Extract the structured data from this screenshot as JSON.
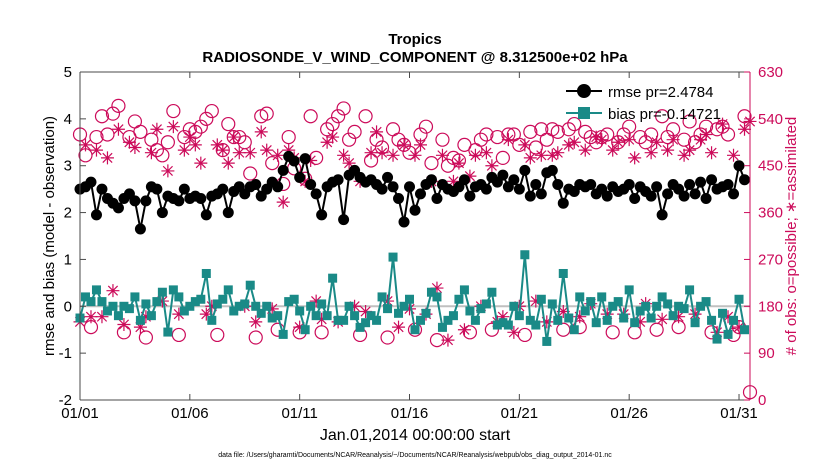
{
  "chart_data": {
    "type": "line",
    "title": "Tropics",
    "subtitle": "RADIOSONDE_V_WIND_COMPONENT @ 8.312500e+02 hPa",
    "xlabel": "Jan.01,2014 00:00:00 start",
    "ylabel": "rmse and bias (model - observation)",
    "y2label": "# of obs: o=possible; ∗=assimilated",
    "footer": "data file: /Users/gharamti/Documents/NCAR/Reanalysis/~/Documents/NCAR/Reanalysis/webpub/obs_diag_output_2014-01.nc",
    "xlim": [
      1,
      31.5
    ],
    "ylim": [
      -2,
      5
    ],
    "y2lim": [
      0,
      630
    ],
    "xticks": [
      1,
      6,
      11,
      16,
      21,
      26,
      31
    ],
    "xticklabels": [
      "01/01",
      "01/06",
      "01/11",
      "01/16",
      "01/21",
      "01/26",
      "01/31"
    ],
    "yticks": [
      -2,
      -1,
      0,
      1,
      2,
      3,
      4,
      5
    ],
    "y2ticks": [
      0,
      90,
      180,
      270,
      360,
      450,
      540,
      630
    ],
    "legend_position": "top-right",
    "colors": {
      "rmse": "#000000",
      "bias": "#1a8a87",
      "counts": "#cc0b5a",
      "zero_line": "#c0c0c0",
      "axes": "#4a4a4a"
    },
    "series": [
      {
        "name": "rmse",
        "legend": "rmse pr=2.4784",
        "marker": "circle",
        "x": [
          1.0,
          1.25,
          1.5,
          1.75,
          2.0,
          2.25,
          2.5,
          2.75,
          3.0,
          3.25,
          3.5,
          3.75,
          4.0,
          4.25,
          4.5,
          4.75,
          5.0,
          5.25,
          5.5,
          5.75,
          6.0,
          6.25,
          6.5,
          6.75,
          7.0,
          7.25,
          7.5,
          7.75,
          8.0,
          8.25,
          8.5,
          8.75,
          9.0,
          9.25,
          9.5,
          9.75,
          10.0,
          10.25,
          10.5,
          10.75,
          11.0,
          11.25,
          11.5,
          11.75,
          12.0,
          12.25,
          12.5,
          12.75,
          13.0,
          13.25,
          13.5,
          13.75,
          14.0,
          14.25,
          14.5,
          14.75,
          15.0,
          15.25,
          15.5,
          15.75,
          16.0,
          16.25,
          16.5,
          16.75,
          17.0,
          17.25,
          17.5,
          17.75,
          18.0,
          18.25,
          18.5,
          18.75,
          19.0,
          19.25,
          19.5,
          19.75,
          20.0,
          20.25,
          20.5,
          20.75,
          21.0,
          21.25,
          21.5,
          21.75,
          22.0,
          22.25,
          22.5,
          22.75,
          23.0,
          23.25,
          23.5,
          23.75,
          24.0,
          24.25,
          24.5,
          24.75,
          25.0,
          25.25,
          25.5,
          25.75,
          26.0,
          26.25,
          26.5,
          26.75,
          27.0,
          27.25,
          27.5,
          27.75,
          28.0,
          28.25,
          28.5,
          28.75,
          29.0,
          29.25,
          29.5,
          29.75,
          30.0,
          30.25,
          30.5,
          30.75,
          31.0,
          31.25
        ],
        "values": [
          2.5,
          2.55,
          2.65,
          1.95,
          2.5,
          2.3,
          2.2,
          2.1,
          2.3,
          2.4,
          2.25,
          1.65,
          2.25,
          2.55,
          2.5,
          2.0,
          2.35,
          2.3,
          2.25,
          2.5,
          2.3,
          2.35,
          2.3,
          1.95,
          2.35,
          2.4,
          2.5,
          2.0,
          2.45,
          2.55,
          2.4,
          2.55,
          2.6,
          2.35,
          2.5,
          2.65,
          2.55,
          2.9,
          3.2,
          3.1,
          2.75,
          3.15,
          2.6,
          2.4,
          1.95,
          2.55,
          2.65,
          2.7,
          1.85,
          2.8,
          2.9,
          2.75,
          2.65,
          2.7,
          2.6,
          2.5,
          2.75,
          2.55,
          2.3,
          1.8,
          2.55,
          2.05,
          2.4,
          2.6,
          2.7,
          2.3,
          2.6,
          2.5,
          2.45,
          2.55,
          2.7,
          2.35,
          2.55,
          2.6,
          2.5,
          2.75,
          2.65,
          2.8,
          2.55,
          2.7,
          2.5,
          2.9,
          2.35,
          2.6,
          2.4,
          2.85,
          2.9,
          2.6,
          2.2,
          2.5,
          2.45,
          2.6,
          2.55,
          2.6,
          2.4,
          2.5,
          2.35,
          2.55,
          2.45,
          2.5,
          2.6,
          2.3,
          2.55,
          2.45,
          2.35,
          2.55,
          1.95,
          2.4,
          2.6,
          2.5,
          2.35,
          2.6,
          2.4,
          2.65,
          2.3,
          2.7,
          2.5,
          2.55,
          2.6,
          2.4,
          3.0,
          2.7
        ]
      },
      {
        "name": "bias",
        "legend": "bias pr=-0.14721",
        "marker": "square",
        "x": [
          1.0,
          1.25,
          1.5,
          1.75,
          2.0,
          2.25,
          2.5,
          2.75,
          3.0,
          3.25,
          3.5,
          3.75,
          4.0,
          4.25,
          4.5,
          4.75,
          5.0,
          5.25,
          5.5,
          5.75,
          6.0,
          6.25,
          6.5,
          6.75,
          7.0,
          7.25,
          7.5,
          7.75,
          8.0,
          8.25,
          8.5,
          8.75,
          9.0,
          9.25,
          9.5,
          9.75,
          10.0,
          10.25,
          10.5,
          10.75,
          11.0,
          11.25,
          11.5,
          11.75,
          12.0,
          12.25,
          12.5,
          12.75,
          13.0,
          13.25,
          13.5,
          13.75,
          14.0,
          14.25,
          14.5,
          14.75,
          15.0,
          15.25,
          15.5,
          15.75,
          16.0,
          16.25,
          16.5,
          16.75,
          17.0,
          17.25,
          17.5,
          17.75,
          18.0,
          18.25,
          18.5,
          18.75,
          19.0,
          19.25,
          19.5,
          19.75,
          20.0,
          20.25,
          20.5,
          20.75,
          21.0,
          21.25,
          21.5,
          21.75,
          22.0,
          22.25,
          22.5,
          22.75,
          23.0,
          23.25,
          23.5,
          23.75,
          24.0,
          24.25,
          24.5,
          24.75,
          25.0,
          25.25,
          25.5,
          25.75,
          26.0,
          26.25,
          26.5,
          26.75,
          27.0,
          27.25,
          27.5,
          27.75,
          28.0,
          28.25,
          28.5,
          28.75,
          29.0,
          29.25,
          29.5,
          29.75,
          30.0,
          30.25,
          30.5,
          30.75,
          31.0,
          31.25
        ],
        "values": [
          -0.25,
          0.2,
          0.1,
          0.35,
          0.1,
          -0.1,
          0.0,
          -0.2,
          0.0,
          -0.05,
          0.2,
          -0.3,
          0.05,
          -0.2,
          0.1,
          0.3,
          -0.55,
          0.35,
          0.2,
          -0.1,
          0.0,
          0.1,
          0.15,
          0.7,
          -0.3,
          0.05,
          0.15,
          0.35,
          -0.1,
          0.0,
          0.05,
          0.45,
          0.0,
          -0.15,
          0.0,
          -0.25,
          -0.2,
          -0.6,
          0.1,
          0.15,
          -0.1,
          -0.5,
          0.0,
          -0.2,
          0.05,
          -0.2,
          0.6,
          -0.3,
          -0.3,
          0.0,
          -0.2,
          -0.45,
          -0.35,
          -0.2,
          -0.3,
          0.2,
          -0.05,
          1.05,
          -0.15,
          0.0,
          0.15,
          -0.5,
          -0.3,
          -0.15,
          0.3,
          0.2,
          -0.45,
          -0.3,
          -0.2,
          0.15,
          0.35,
          -0.1,
          -0.3,
          -0.05,
          0.05,
          0.3,
          -0.4,
          -0.35,
          -0.4,
          0.0,
          -0.2,
          1.1,
          -0.3,
          -0.4,
          0.15,
          -0.75,
          0.05,
          -0.3,
          0.7,
          -0.25,
          -0.5,
          0.2,
          -0.1,
          0.1,
          -0.35,
          0.2,
          -0.3,
          0.0,
          0.1,
          -0.25,
          0.35,
          -0.35,
          -0.1,
          0.0,
          -0.25,
          0.0,
          0.2,
          0.05,
          -0.2,
          0.0,
          -0.05,
          0.35,
          -0.35,
          0.0,
          0.1,
          -0.3,
          -0.7,
          -0.15,
          -0.6,
          -0.3,
          0.15,
          -0.5
        ]
      },
      {
        "name": "possible",
        "marker": "open-circle",
        "axis": "right",
        "x": [
          1.0,
          1.25,
          1.5,
          1.75,
          2.0,
          2.25,
          2.5,
          2.75,
          3.0,
          3.25,
          3.5,
          3.75,
          4.0,
          4.25,
          4.5,
          4.75,
          5.0,
          5.25,
          5.5,
          5.75,
          6.0,
          6.25,
          6.5,
          6.75,
          7.0,
          7.25,
          7.5,
          7.75,
          8.0,
          8.25,
          8.5,
          8.75,
          9.0,
          9.25,
          9.5,
          9.75,
          10.0,
          10.25,
          10.5,
          10.75,
          11.0,
          11.25,
          11.5,
          11.75,
          12.0,
          12.25,
          12.5,
          12.75,
          13.0,
          13.25,
          13.5,
          13.75,
          14.0,
          14.25,
          14.5,
          14.75,
          15.0,
          15.25,
          15.5,
          15.75,
          16.0,
          16.25,
          16.5,
          16.75,
          17.0,
          17.25,
          17.5,
          17.75,
          18.0,
          18.25,
          18.5,
          18.75,
          19.0,
          19.25,
          19.5,
          19.75,
          20.0,
          20.25,
          20.5,
          20.75,
          21.0,
          21.25,
          21.5,
          21.75,
          22.0,
          22.25,
          22.5,
          22.75,
          23.0,
          23.25,
          23.5,
          23.75,
          24.0,
          24.25,
          24.5,
          24.75,
          25.0,
          25.25,
          25.5,
          25.75,
          26.0,
          26.25,
          26.5,
          26.75,
          27.0,
          27.25,
          27.5,
          27.75,
          28.0,
          28.25,
          28.5,
          28.75,
          29.0,
          29.25,
          29.5,
          29.75,
          30.0,
          30.25,
          30.5,
          30.75,
          31.0,
          31.25,
          31.5
        ],
        "values": [
          510,
          470,
          140,
          505,
          545,
          510,
          550,
          565,
          130,
          505,
          535,
          515,
          120,
          500,
          480,
          470,
          495,
          555,
          125,
          505,
          520,
          515,
          525,
          540,
          555,
          125,
          480,
          530,
          505,
          505,
          495,
          435,
          120,
          545,
          550,
          455,
          135,
          415,
          505,
          445,
          130,
          425,
          545,
          465,
          130,
          520,
          530,
          545,
          560,
          500,
          515,
          125,
          545,
          460,
          500,
          485,
          120,
          520,
          500,
          490,
          475,
          135,
          510,
          525,
          455,
          115,
          500,
          450,
          465,
          460,
          490,
          130,
          480,
          500,
          510,
          135,
          505,
          465,
          510,
          510,
          490,
          125,
          515,
          485,
          520,
          500,
          520,
          515,
          135,
          520,
          530,
          140,
          515,
          505,
          495,
          505,
          510,
          130,
          495,
          510,
          525,
          130,
          505,
          495,
          510,
          135,
          545,
          505,
          520,
          140,
          500,
          535,
          495,
          510,
          525,
          130,
          520,
          525,
          510,
          125,
          140,
          545,
          15
        ]
      },
      {
        "name": "assimilated",
        "marker": "asterisk",
        "axis": "right",
        "x": [
          1.0,
          1.25,
          1.5,
          1.75,
          2.0,
          2.25,
          2.5,
          2.75,
          3.0,
          3.25,
          3.5,
          3.75,
          4.0,
          4.25,
          4.5,
          4.75,
          5.0,
          5.25,
          5.5,
          5.75,
          6.0,
          6.25,
          6.5,
          6.75,
          7.0,
          7.25,
          7.5,
          7.75,
          8.0,
          8.25,
          8.5,
          8.75,
          9.0,
          9.25,
          9.5,
          9.75,
          10.0,
          10.25,
          10.5,
          10.75,
          11.0,
          11.25,
          11.5,
          11.75,
          12.0,
          12.25,
          12.5,
          12.75,
          13.0,
          13.25,
          13.5,
          13.75,
          14.0,
          14.25,
          14.5,
          14.75,
          15.0,
          15.25,
          15.5,
          15.75,
          16.0,
          16.25,
          16.5,
          16.75,
          17.0,
          17.25,
          17.5,
          17.75,
          18.0,
          18.25,
          18.5,
          18.75,
          19.0,
          19.25,
          19.5,
          19.75,
          20.0,
          20.25,
          20.5,
          20.75,
          21.0,
          21.25,
          21.5,
          21.75,
          22.0,
          22.25,
          22.5,
          22.75,
          23.0,
          23.25,
          23.5,
          23.75,
          24.0,
          24.25,
          24.5,
          24.75,
          25.0,
          25.25,
          25.5,
          25.75,
          26.0,
          26.25,
          26.5,
          26.75,
          27.0,
          27.25,
          27.5,
          27.75,
          28.0,
          28.25,
          28.5,
          28.75,
          29.0,
          29.25,
          29.5,
          29.75,
          30.0,
          30.25,
          30.5,
          30.75,
          31.0,
          31.25,
          31.5
        ],
        "values": [
          150,
          490,
          160,
          480,
          160,
          465,
          210,
          520,
          145,
          495,
          485,
          140,
          160,
          475,
          520,
          190,
          440,
          525,
          165,
          480,
          505,
          490,
          455,
          165,
          180,
          490,
          480,
          455,
          505,
          475,
          180,
          475,
          150,
          515,
          480,
          175,
          470,
          380,
          480,
          465,
          140,
          420,
          460,
          190,
          155,
          495,
          505,
          150,
          470,
          455,
          180,
          420,
          170,
          475,
          515,
          475,
          190,
          470,
          140,
          490,
          175,
          470,
          490,
          165,
          420,
          215,
          470,
          115,
          420,
          455,
          135,
          430,
          470,
          180,
          475,
          450,
          150,
          160,
          500,
          130,
          180,
          490,
          465,
          190,
          470,
          150,
          470,
          475,
          170,
          490,
          495,
          160,
          480,
          185,
          505,
          500,
          165,
          480,
          495,
          165,
          500,
          465,
          150,
          185,
          475,
          495,
          155,
          480,
          500,
          160,
          470,
          480,
          165,
          500,
          510,
          475,
          130,
          530,
          160,
          470,
          140,
          520,
          535
        ]
      }
    ]
  }
}
